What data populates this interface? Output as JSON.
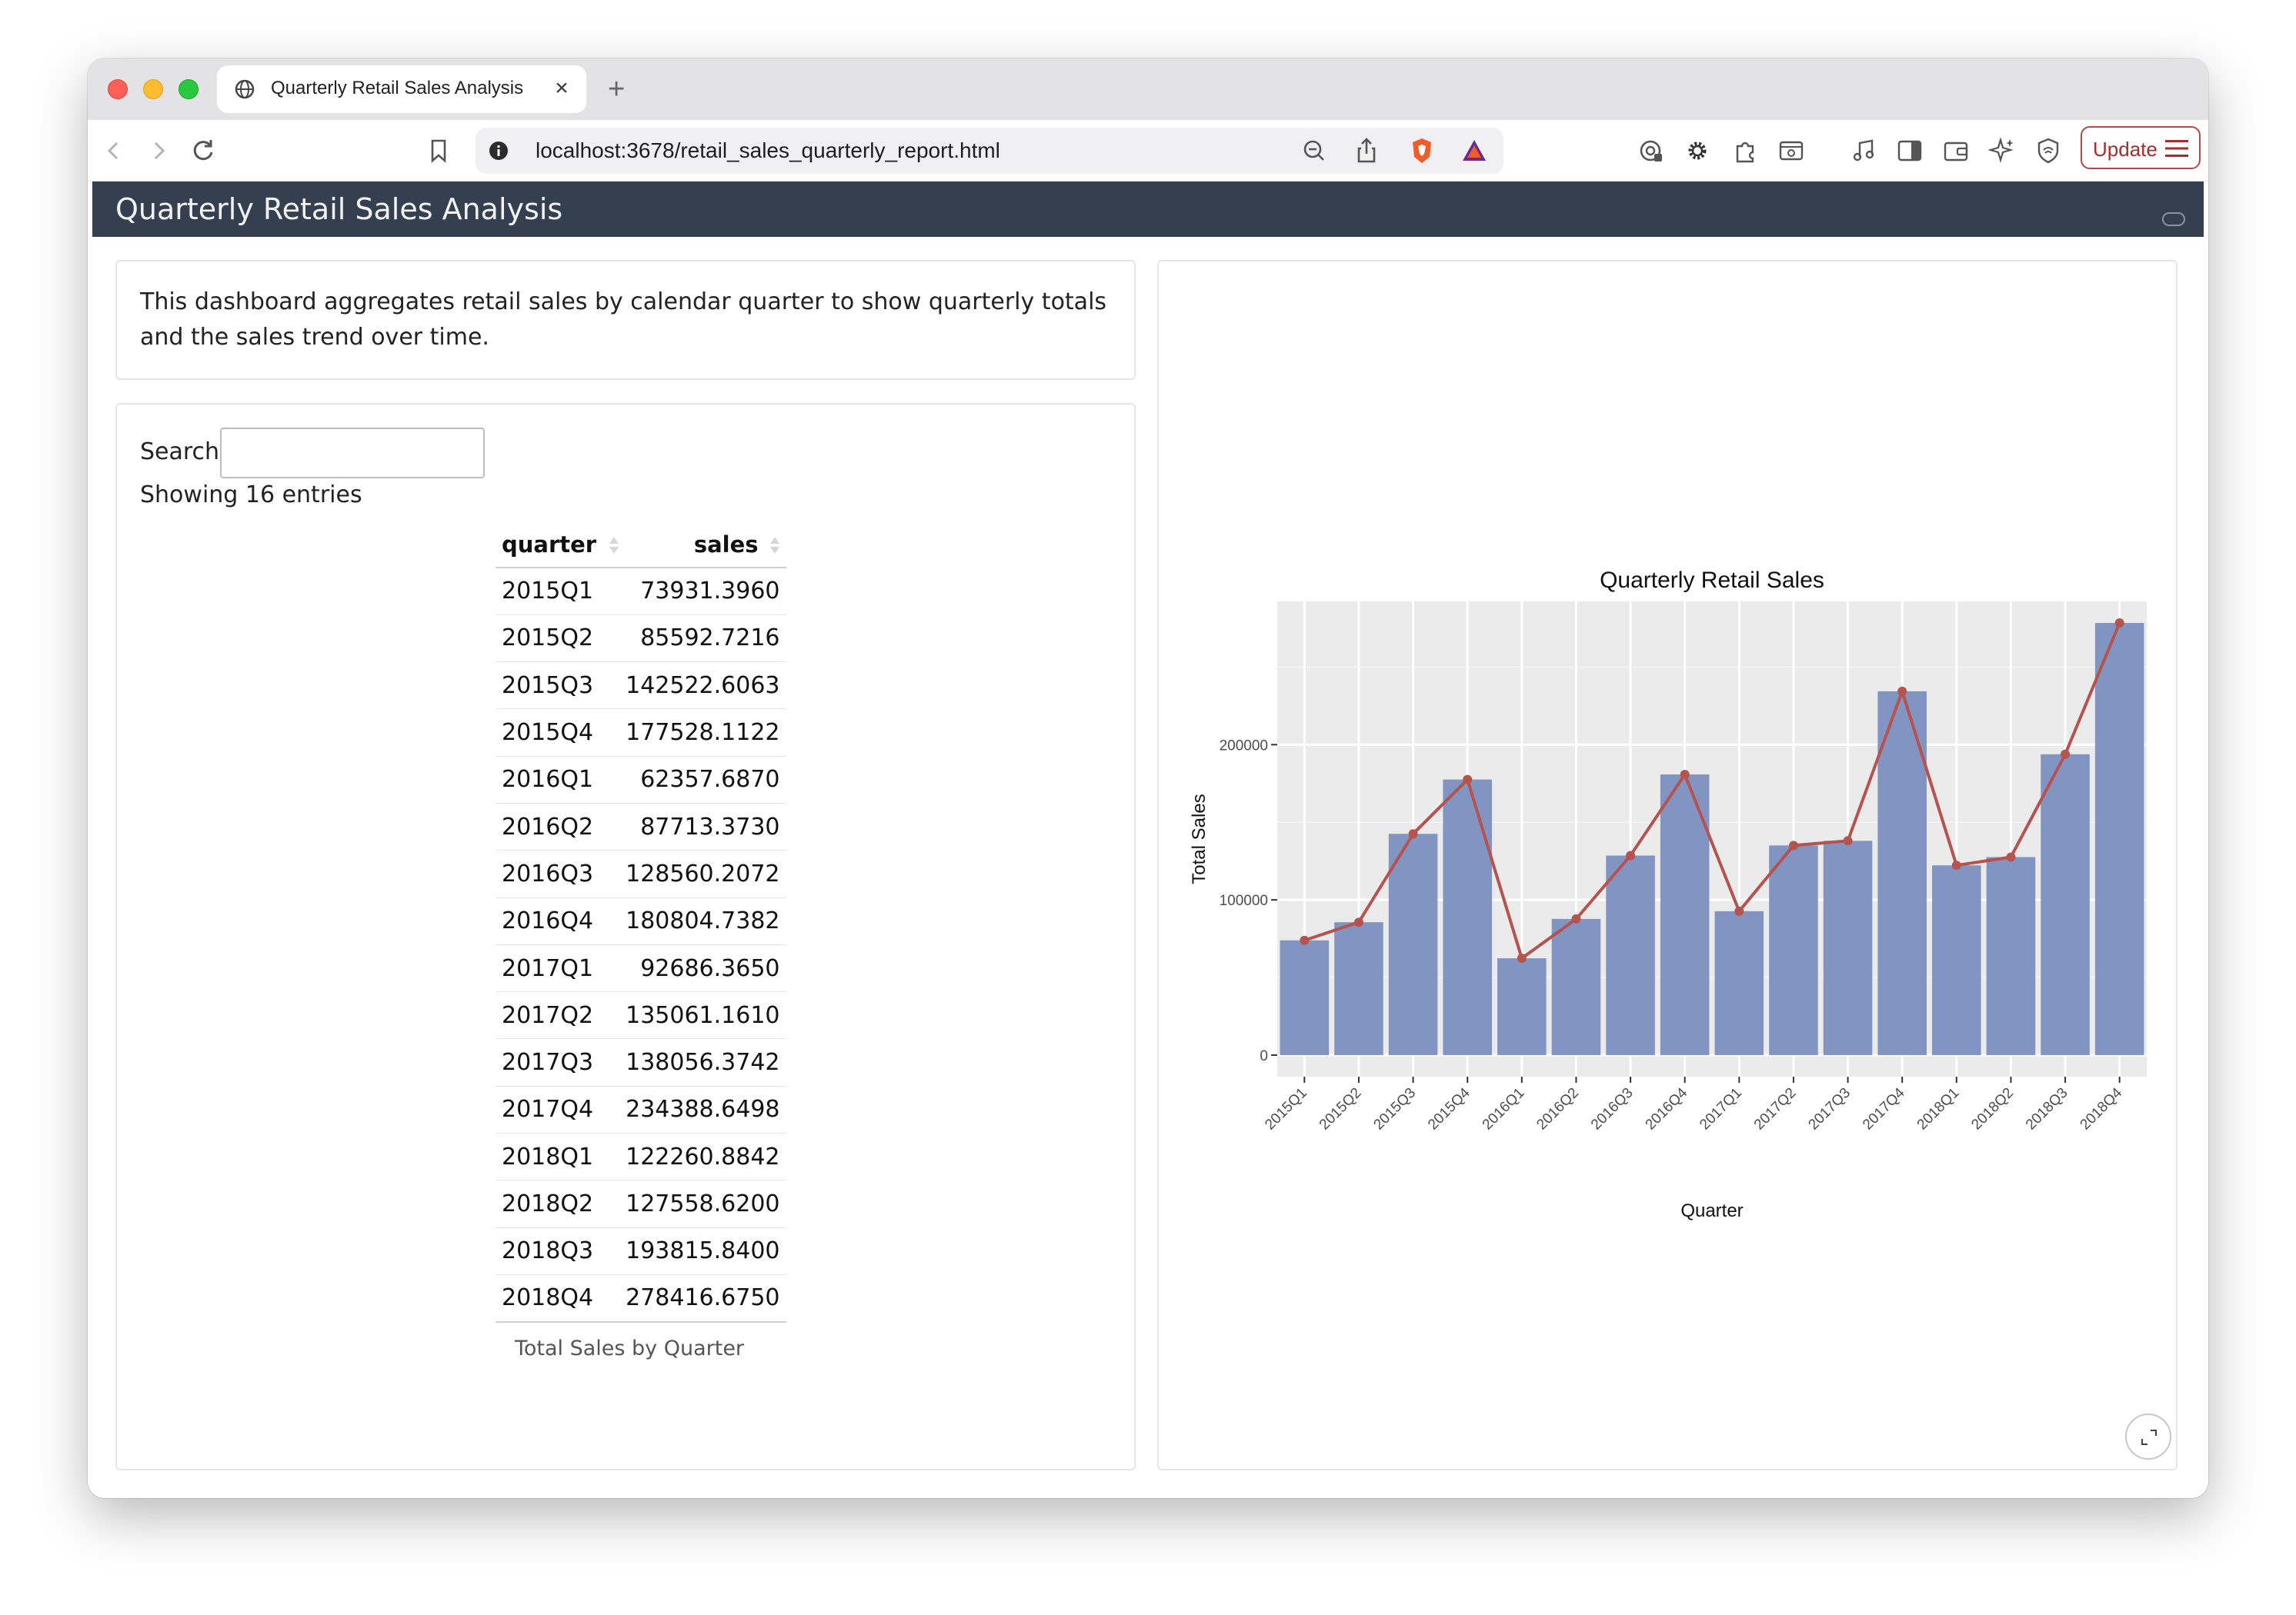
{
  "browser": {
    "tab_title": "Quarterly Retail Sales Analysis",
    "tab_close": "×",
    "new_tab": "+",
    "url": "localhost:3678/retail_sales_quarterly_report.html",
    "update_label": "Update"
  },
  "app": {
    "title": "Quarterly Retail Sales Analysis",
    "description": "This dashboard aggregates retail sales by calendar quarter to show quarterly totals and the sales trend over time."
  },
  "table": {
    "search_label": "Search:",
    "search_value": "",
    "entries_text": "Showing 16 entries",
    "columns": [
      "quarter",
      "sales"
    ],
    "rows": [
      [
        "2015Q1",
        "73931.3960"
      ],
      [
        "2015Q2",
        "85592.7216"
      ],
      [
        "2015Q3",
        "142522.6063"
      ],
      [
        "2015Q4",
        "177528.1122"
      ],
      [
        "2016Q1",
        "62357.6870"
      ],
      [
        "2016Q2",
        "87713.3730"
      ],
      [
        "2016Q3",
        "128560.2072"
      ],
      [
        "2016Q4",
        "180804.7382"
      ],
      [
        "2017Q1",
        "92686.3650"
      ],
      [
        "2017Q2",
        "135061.1610"
      ],
      [
        "2017Q3",
        "138056.3742"
      ],
      [
        "2017Q4",
        "234388.6498"
      ],
      [
        "2018Q1",
        "122260.8842"
      ],
      [
        "2018Q2",
        "127558.6200"
      ],
      [
        "2018Q3",
        "193815.8400"
      ],
      [
        "2018Q4",
        "278416.6750"
      ]
    ],
    "caption": "Total Sales by Quarter"
  },
  "chart_data": {
    "type": "bar",
    "title": "Quarterly Retail Sales",
    "xlabel": "Quarter",
    "ylabel": "Total Sales",
    "categories": [
      "2015Q1",
      "2015Q2",
      "2015Q3",
      "2015Q4",
      "2016Q1",
      "2016Q2",
      "2016Q3",
      "2016Q4",
      "2017Q1",
      "2017Q2",
      "2017Q3",
      "2017Q4",
      "2018Q1",
      "2018Q2",
      "2018Q3",
      "2018Q4"
    ],
    "values": [
      73931.396,
      85592.7216,
      142522.6063,
      177528.1122,
      62357.687,
      87713.373,
      128560.2072,
      180804.7382,
      92686.365,
      135061.161,
      138056.3742,
      234388.6498,
      122260.8842,
      127558.62,
      193815.84,
      278416.675
    ],
    "overlay": "line with points over the same values",
    "ylim": [
      -13900,
      292300
    ],
    "yticks": [
      0,
      100000,
      200000
    ],
    "ytick_labels": [
      "0",
      "100000",
      "200000"
    ],
    "grid": true,
    "legend": "none",
    "bar_color": "#8294c2",
    "line_color": "#b5534f",
    "panel_color": "#ebebeb"
  },
  "colors": {
    "header_bg": "#343f4f",
    "accent": "#a42d2d"
  }
}
